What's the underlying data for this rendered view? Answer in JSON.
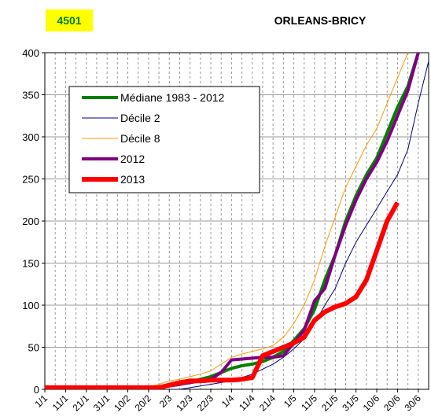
{
  "chart_data": {
    "type": "line",
    "station": "4501",
    "title": "ORLEANS-BRICY",
    "categories": [
      "1/1",
      null,
      "11/1",
      null,
      "21/1",
      null,
      "31/1",
      null,
      "10/2",
      null,
      "20/2",
      null,
      "2/3",
      null,
      "12/3",
      null,
      "22/3",
      null,
      "1/4",
      null,
      "11/4",
      null,
      "21/4",
      null,
      "1/5",
      null,
      "11/5",
      null,
      "21/5",
      null,
      "31/5",
      null,
      "10/6",
      null,
      "20/6",
      null,
      "30/6",
      null
    ],
    "series": [
      {
        "name": "Médiane 1983 - 2012",
        "color": "#008000",
        "width": 4,
        "values": [
          2,
          2,
          2,
          2,
          2,
          2,
          2,
          2,
          2,
          2,
          2,
          3,
          4,
          6,
          9,
          12,
          15,
          20,
          25,
          28,
          30,
          33,
          38,
          45,
          58,
          72,
          95,
          130,
          160,
          200,
          230,
          255,
          275,
          305,
          335,
          360,
          400,
          null
        ]
      },
      {
        "name": "Décile 2",
        "color": "#000080",
        "width": 1,
        "values": [
          0,
          0,
          0,
          0,
          0,
          0,
          0,
          0,
          0,
          0,
          0,
          0,
          0,
          0,
          2,
          4,
          6,
          8,
          10,
          14,
          18,
          24,
          30,
          38,
          48,
          60,
          78,
          100,
          120,
          150,
          175,
          195,
          215,
          235,
          255,
          285,
          340,
          390
        ]
      },
      {
        "name": "Décile 8",
        "color": "#ff9900",
        "width": 1,
        "values": [
          2,
          2,
          2,
          2,
          2,
          2,
          2,
          2,
          2,
          2,
          3,
          6,
          10,
          12,
          15,
          18,
          22,
          30,
          38,
          42,
          45,
          48,
          52,
          62,
          78,
          100,
          130,
          170,
          205,
          240,
          265,
          290,
          310,
          340,
          370,
          400,
          null,
          null
        ]
      },
      {
        "name": "2012",
        "color": "#800080",
        "width": 4,
        "values": [
          2,
          2,
          2,
          2,
          2,
          2,
          2,
          2,
          2,
          2,
          2,
          2,
          4,
          6,
          8,
          10,
          12,
          20,
          35,
          36,
          37,
          38,
          38,
          40,
          55,
          70,
          105,
          120,
          160,
          195,
          225,
          250,
          270,
          295,
          325,
          355,
          400,
          null
        ]
      },
      {
        "name": "2013",
        "color": "#ff0000",
        "width": 6,
        "values": [
          2,
          2,
          2,
          2,
          2,
          2,
          2,
          2,
          2,
          2,
          2,
          2,
          5,
          8,
          10,
          10,
          11,
          11,
          11,
          12,
          14,
          40,
          45,
          50,
          55,
          62,
          82,
          92,
          98,
          102,
          110,
          130,
          165,
          200,
          222,
          null,
          null,
          null
        ]
      }
    ],
    "ylim": [
      0,
      400
    ],
    "yticks": [
      0,
      50,
      100,
      150,
      200,
      250,
      300,
      350,
      400
    ],
    "grid": true
  }
}
